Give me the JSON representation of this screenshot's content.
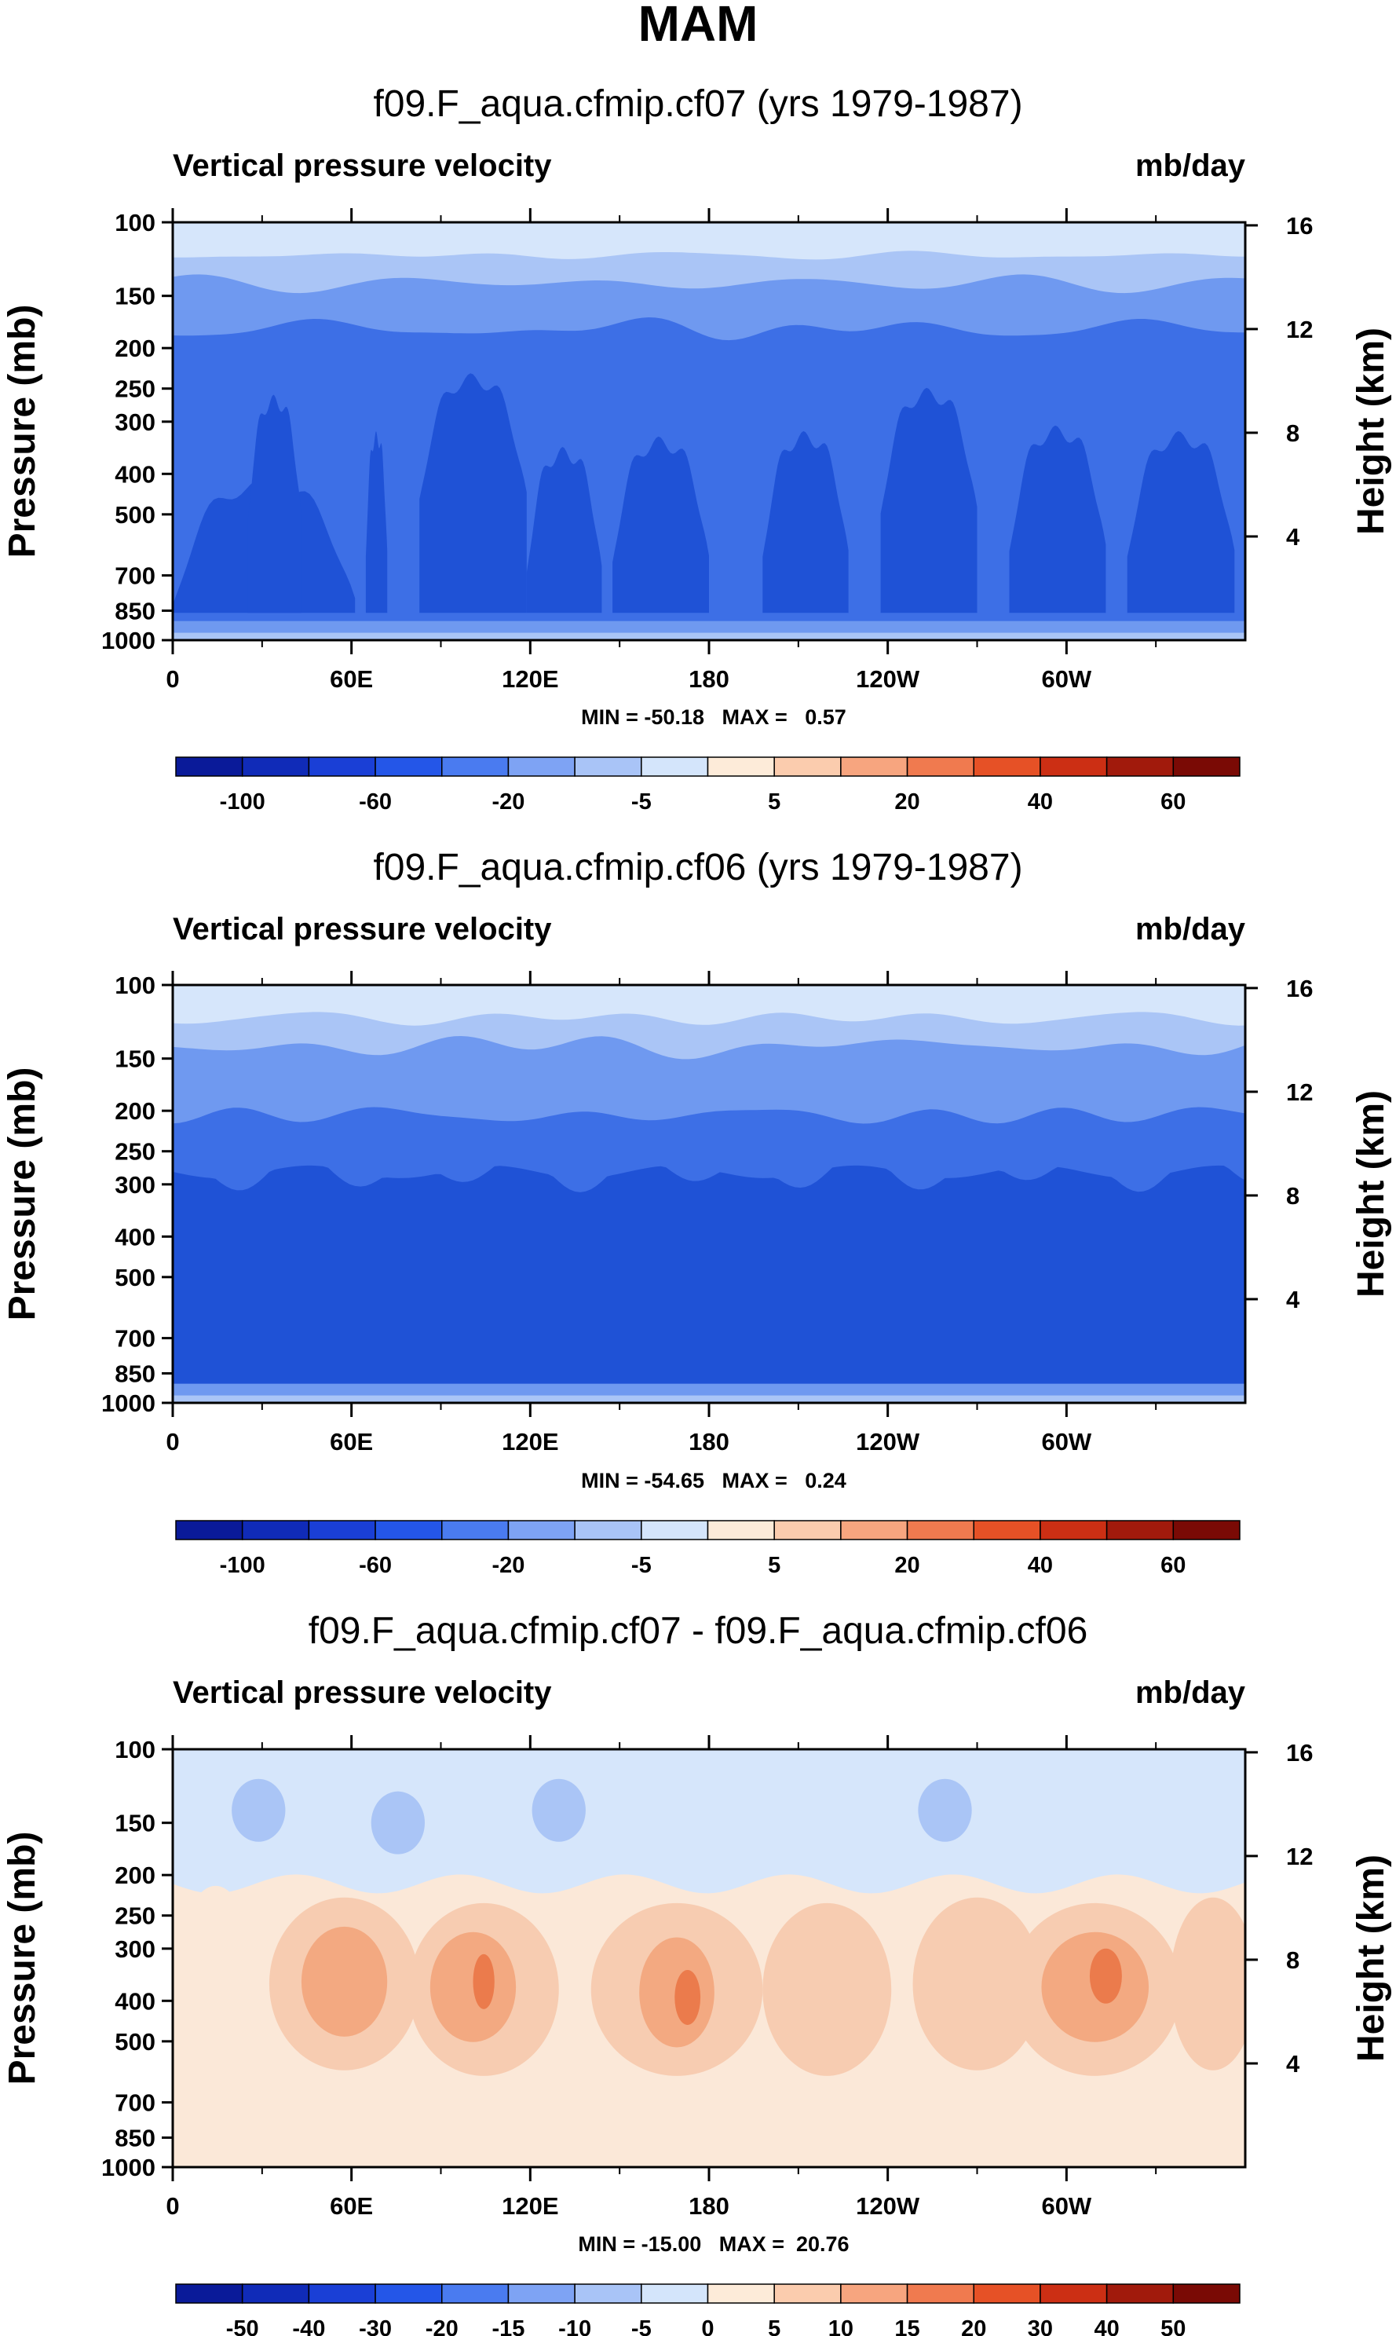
{
  "figure": {
    "title": "MAM"
  },
  "palette": {
    "blue_dark": "#1f52d6",
    "blue_mid": "#3d6fe6",
    "blue_light1": "#6f99f0",
    "blue_light2": "#aac5f6",
    "blue_pale": "#d6e6fb",
    "cream": "#fbe8d8",
    "peach": "#f7ccb1",
    "salmon": "#f3a981",
    "orange": "#eb7b4c",
    "orange_dark": "#e0552a"
  },
  "chart_data": [
    {
      "type": "heatmap",
      "title": "f09.F_aqua.cfmip.cf07 (yrs 1979-1987)",
      "left_string": "Vertical pressure velocity",
      "right_string": "mb/day",
      "ylabel": "Pressure (mb)",
      "y2label": "Height (km)",
      "y_ticks": [
        "100",
        "150",
        "200",
        "250",
        "300",
        "400",
        "500",
        "700",
        "850",
        "1000"
      ],
      "y_tick_values": [
        100,
        150,
        200,
        250,
        300,
        400,
        500,
        700,
        850,
        1000
      ],
      "y2_ticks": [
        "4",
        "8",
        "12",
        "16"
      ],
      "y2_tick_values": [
        4,
        8,
        12,
        16
      ],
      "x_ticks": [
        "0",
        "60E",
        "120E",
        "180",
        "120W",
        "60W"
      ],
      "x_tick_values": [
        0,
        60,
        120,
        180,
        240,
        300
      ],
      "xlim": [
        0,
        360
      ],
      "ylim": [
        1000,
        100
      ],
      "yscale": "log",
      "stats": "MIN = -50.18   MAX =   0.57",
      "min": -50.18,
      "max": 0.57,
      "colorbar": {
        "colors": [
          "#0a1a99",
          "#102bb8",
          "#1a3fd6",
          "#2456e8",
          "#4a7bf0",
          "#7ea3f4",
          "#a9c4f7",
          "#d4e5fb",
          "#fdebd9",
          "#fbccae",
          "#f7a57f",
          "#f07a4f",
          "#e65126",
          "#cc2f14",
          "#a11a0c",
          "#7a0a05"
        ],
        "labels": [
          "-100",
          "-60",
          "-20",
          "-5",
          "5",
          "20",
          "40",
          "60"
        ]
      }
    },
    {
      "type": "heatmap",
      "title": "f09.F_aqua.cfmip.cf06 (yrs 1979-1987)",
      "left_string": "Vertical pressure velocity",
      "right_string": "mb/day",
      "ylabel": "Pressure (mb)",
      "y2label": "Height (km)",
      "y_ticks": [
        "100",
        "150",
        "200",
        "250",
        "300",
        "400",
        "500",
        "700",
        "850",
        "1000"
      ],
      "y_tick_values": [
        100,
        150,
        200,
        250,
        300,
        400,
        500,
        700,
        850,
        1000
      ],
      "y2_ticks": [
        "4",
        "8",
        "12",
        "16"
      ],
      "y2_tick_values": [
        4,
        8,
        12,
        16
      ],
      "x_ticks": [
        "0",
        "60E",
        "120E",
        "180",
        "120W",
        "60W"
      ],
      "x_tick_values": [
        0,
        60,
        120,
        180,
        240,
        300
      ],
      "xlim": [
        0,
        360
      ],
      "ylim": [
        1000,
        100
      ],
      "yscale": "log",
      "stats": "MIN = -54.65   MAX =   0.24",
      "min": -54.65,
      "max": 0.24,
      "colorbar": {
        "colors": [
          "#0a1a99",
          "#102bb8",
          "#1a3fd6",
          "#2456e8",
          "#4a7bf0",
          "#7ea3f4",
          "#a9c4f7",
          "#d4e5fb",
          "#fdebd9",
          "#fbccae",
          "#f7a57f",
          "#f07a4f",
          "#e65126",
          "#cc2f14",
          "#a11a0c",
          "#7a0a05"
        ],
        "labels": [
          "-100",
          "-60",
          "-20",
          "-5",
          "5",
          "20",
          "40",
          "60"
        ]
      }
    },
    {
      "type": "heatmap",
      "title": "f09.F_aqua.cfmip.cf07 - f09.F_aqua.cfmip.cf06",
      "left_string": "Vertical pressure velocity",
      "right_string": "mb/day",
      "ylabel": "Pressure (mb)",
      "y2label": "Height (km)",
      "y_ticks": [
        "100",
        "150",
        "200",
        "250",
        "300",
        "400",
        "500",
        "700",
        "850",
        "1000"
      ],
      "y_tick_values": [
        100,
        150,
        200,
        250,
        300,
        400,
        500,
        700,
        850,
        1000
      ],
      "y2_ticks": [
        "4",
        "8",
        "12",
        "16"
      ],
      "y2_tick_values": [
        4,
        8,
        12,
        16
      ],
      "x_ticks": [
        "0",
        "60E",
        "120E",
        "180",
        "120W",
        "60W"
      ],
      "x_tick_values": [
        0,
        60,
        120,
        180,
        240,
        300
      ],
      "xlim": [
        0,
        360
      ],
      "ylim": [
        1000,
        100
      ],
      "yscale": "log",
      "stats": "MIN = -15.00   MAX =  20.76",
      "min": -15.0,
      "max": 20.76,
      "colorbar": {
        "colors": [
          "#0a1a99",
          "#102bb8",
          "#1a3fd6",
          "#2456e8",
          "#4a7bf0",
          "#7ea3f4",
          "#a9c4f7",
          "#d4e5fb",
          "#fdebd9",
          "#fbccae",
          "#f7a57f",
          "#f07a4f",
          "#e65126",
          "#cc2f14",
          "#a11a0c",
          "#7a0a05"
        ],
        "labels": [
          "-50",
          "-40",
          "-30",
          "-20",
          "-15",
          "-10",
          "-5",
          "0",
          "5",
          "10",
          "15",
          "20",
          "30",
          "40",
          "50"
        ]
      }
    }
  ]
}
